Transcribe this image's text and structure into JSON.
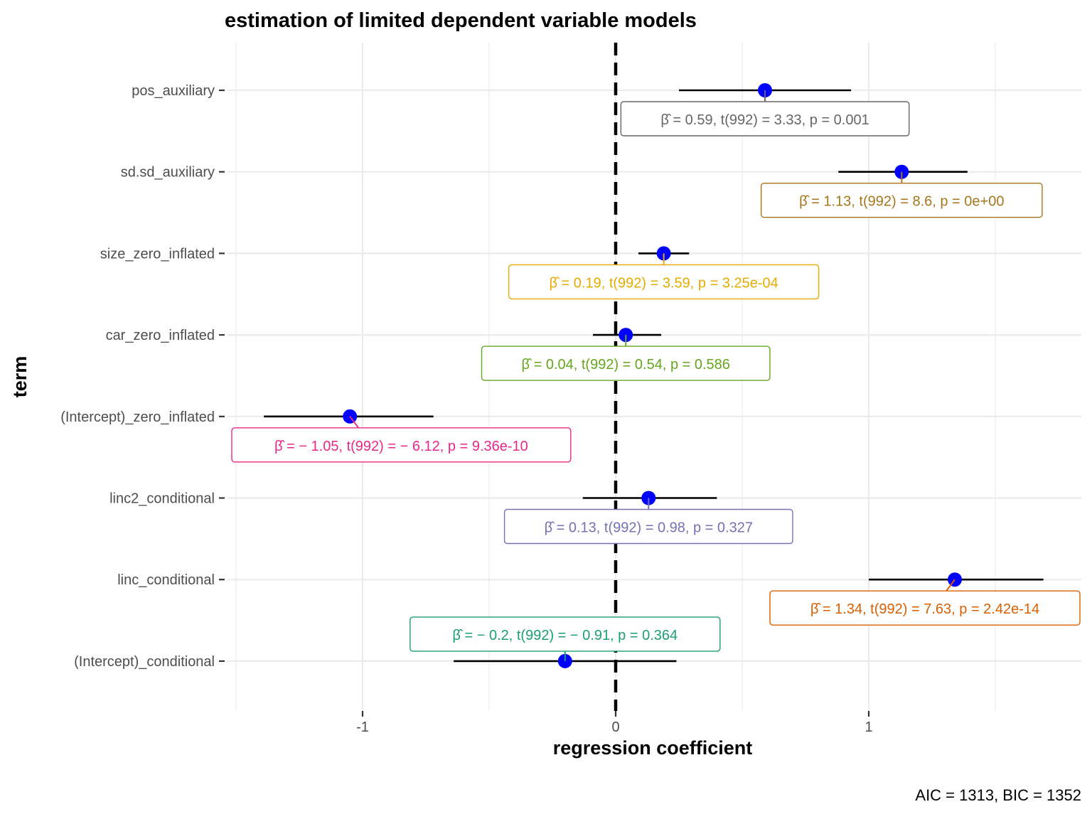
{
  "chart_data": {
    "type": "scatter",
    "subtype": "coefficient-plot",
    "title": "estimation of limited dependent variable models",
    "xlabel": "regression coefficient",
    "ylabel": "term",
    "caption": "AIC = 1313, BIC = 1352",
    "xlim": [
      -1.5,
      1.85
    ],
    "x_ticks": [
      -1,
      0,
      1
    ],
    "x_tick_labels": [
      "-1",
      "0",
      "1"
    ],
    "reference_line": 0,
    "point_color": "#0000ff",
    "grid": true,
    "terms": [
      {
        "term": "pos_auxiliary",
        "estimate": 0.59,
        "conf_low": 0.25,
        "conf_high": 0.93,
        "label": "β̂ = 0.59,  t(992) = 3.33,  p = 0.001",
        "color": "#666666"
      },
      {
        "term": "sd.sd_auxiliary",
        "estimate": 1.13,
        "conf_low": 0.88,
        "conf_high": 1.39,
        "label": "β̂ = 1.13,  t(992) = 8.6,  p = 0e+00",
        "color": "#a6761d"
      },
      {
        "term": "size_zero_inflated",
        "estimate": 0.19,
        "conf_low": 0.09,
        "conf_high": 0.29,
        "label": "β̂ = 0.19,  t(992) = 3.59,  p = 3.25e-04",
        "color": "#e6ab02"
      },
      {
        "term": "car_zero_inflated",
        "estimate": 0.04,
        "conf_low": -0.09,
        "conf_high": 0.18,
        "label": "β̂ = 0.04,  t(992) = 0.54,  p = 0.586",
        "color": "#66a61e"
      },
      {
        "term": "(Intercept)_zero_inflated",
        "estimate": -1.05,
        "conf_low": -1.39,
        "conf_high": -0.72,
        "label": "β̂ = − 1.05,  t(992) = − 6.12,  p = 9.36e-10",
        "color": "#e7298a"
      },
      {
        "term": "linc2_conditional",
        "estimate": 0.13,
        "conf_low": -0.13,
        "conf_high": 0.4,
        "label": "β̂ = 0.13,  t(992) = 0.98,  p = 0.327",
        "color": "#7570b3"
      },
      {
        "term": "linc_conditional",
        "estimate": 1.34,
        "conf_low": 1.0,
        "conf_high": 1.69,
        "label": "β̂ = 1.34,  t(992) = 7.63,  p = 2.42e-14",
        "color": "#d95f02"
      },
      {
        "term": "(Intercept)_conditional",
        "estimate": -0.2,
        "conf_low": -0.64,
        "conf_high": 0.24,
        "label": "β̂ = − 0.2,  t(992) = − 0.91,  p = 0.364",
        "color": "#1b9e77"
      }
    ]
  }
}
